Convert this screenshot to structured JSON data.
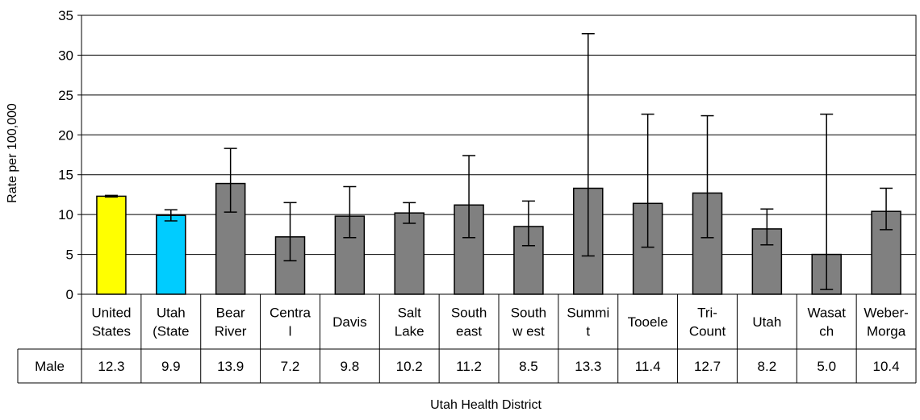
{
  "chart_data": {
    "type": "bar",
    "title": "",
    "xlabel": "Utah Health District",
    "ylabel": "Rate per 100,000",
    "ylim": [
      0,
      35
    ],
    "yticks": [
      0,
      5,
      10,
      15,
      20,
      25,
      30,
      35
    ],
    "grid": true,
    "legend": "none",
    "categories": [
      [
        "United",
        "States"
      ],
      [
        "Utah",
        "(State"
      ],
      [
        "Bear",
        "River"
      ],
      [
        "Centra",
        "l"
      ],
      [
        "Davis"
      ],
      [
        "Salt",
        "Lake"
      ],
      [
        "South",
        "east"
      ],
      [
        "South",
        "w est"
      ],
      [
        "Summi",
        "t"
      ],
      [
        "Tooele"
      ],
      [
        "Tri-",
        "Count"
      ],
      [
        "Utah"
      ],
      [
        "Wasat",
        "ch"
      ],
      [
        "Weber-",
        "Morga"
      ]
    ],
    "series": [
      {
        "name": "Male",
        "values": [
          12.3,
          9.9,
          13.9,
          7.2,
          9.8,
          10.2,
          11.2,
          8.5,
          13.3,
          11.4,
          12.7,
          8.2,
          5.0,
          10.4
        ],
        "labels": [
          "12.3",
          "9.9",
          "13.9",
          "7.2",
          "9.8",
          "10.2",
          "11.2",
          "8.5",
          "13.3",
          "11.4",
          "12.7",
          "8.2",
          "5.0",
          "10.4"
        ],
        "error_low": [
          12.2,
          9.2,
          10.3,
          4.2,
          7.1,
          8.9,
          7.1,
          6.1,
          4.8,
          5.9,
          7.1,
          6.2,
          0.6,
          8.1
        ],
        "error_high": [
          12.4,
          10.6,
          18.3,
          11.5,
          13.5,
          11.5,
          17.4,
          11.7,
          32.7,
          22.6,
          22.4,
          10.7,
          22.6,
          13.3
        ]
      }
    ],
    "colors": {
      "bars": [
        "#ffff00",
        "#00ccff",
        "#808080",
        "#808080",
        "#808080",
        "#808080",
        "#808080",
        "#808080",
        "#808080",
        "#808080",
        "#808080",
        "#808080",
        "#808080",
        "#808080"
      ],
      "outline": "#000000",
      "grid": "#000000"
    }
  }
}
